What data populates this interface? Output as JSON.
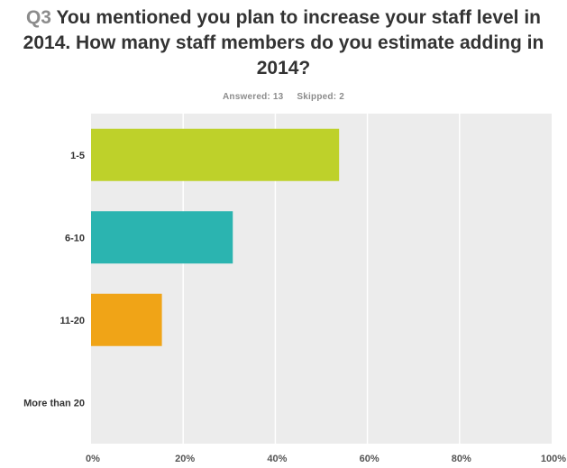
{
  "header": {
    "question_number": "Q3",
    "question_text": "You mentioned you plan to increase your staff level in 2014. How many staff members do you estimate adding in 2014?",
    "answered": "Answered: 13",
    "skipped": "Skipped: 2"
  },
  "chart_data": {
    "type": "bar",
    "orientation": "horizontal",
    "title": "Q3 You mentioned you plan to increase your staff level in 2014. How many staff members do you estimate adding in 2014?",
    "categories": [
      "1-5",
      "6-10",
      "11-20",
      "More than 20"
    ],
    "values": [
      53.85,
      30.77,
      15.38,
      0
    ],
    "unit": "%",
    "xlim": [
      0,
      100
    ],
    "xticks": [
      "0%",
      "20%",
      "40%",
      "60%",
      "80%",
      "100%"
    ],
    "xtick_values": [
      0,
      20,
      40,
      60,
      80,
      100
    ],
    "grid": true,
    "legend": "none",
    "colors": [
      "#bed12a",
      "#2bb4b0",
      "#f0a417",
      "#7f7f7f"
    ],
    "plot_background": "#ececec",
    "grid_color": "#ffffff"
  }
}
